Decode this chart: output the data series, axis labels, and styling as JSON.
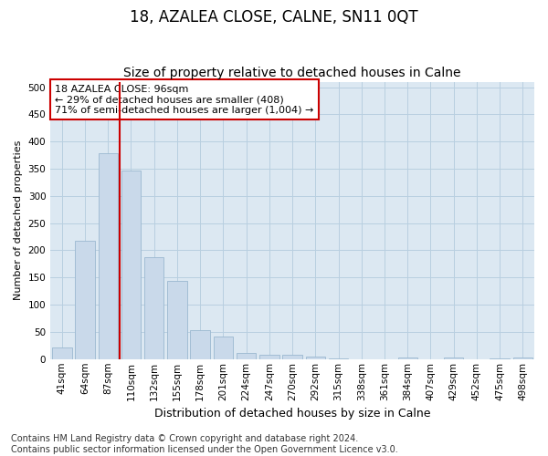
{
  "title": "18, AZALEA CLOSE, CALNE, SN11 0QT",
  "subtitle": "Size of property relative to detached houses in Calne",
  "xlabel": "Distribution of detached houses by size in Calne",
  "ylabel": "Number of detached properties",
  "bar_labels": [
    "41sqm",
    "64sqm",
    "87sqm",
    "110sqm",
    "132sqm",
    "155sqm",
    "178sqm",
    "201sqm",
    "224sqm",
    "247sqm",
    "270sqm",
    "292sqm",
    "315sqm",
    "338sqm",
    "361sqm",
    "384sqm",
    "407sqm",
    "429sqm",
    "452sqm",
    "475sqm",
    "498sqm"
  ],
  "bar_values": [
    22,
    218,
    378,
    347,
    188,
    144,
    54,
    41,
    11,
    8,
    8,
    4,
    1,
    0,
    0,
    3,
    0,
    3,
    0,
    1,
    3
  ],
  "bar_color": "#c9d9ea",
  "bar_edgecolor": "#9bb8d0",
  "vline_x": 2.5,
  "vline_color": "#cc0000",
  "annotation_text": "18 AZALEA CLOSE: 96sqm\n← 29% of detached houses are smaller (408)\n71% of semi-detached houses are larger (1,004) →",
  "annotation_box_facecolor": "#ffffff",
  "annotation_box_edgecolor": "#cc0000",
  "ylim": [
    0,
    510
  ],
  "yticks": [
    0,
    50,
    100,
    150,
    200,
    250,
    300,
    350,
    400,
    450,
    500
  ],
  "grid_color": "#b8cfe0",
  "plot_bg_color": "#dce8f2",
  "footer_text": "Contains HM Land Registry data © Crown copyright and database right 2024.\nContains public sector information licensed under the Open Government Licence v3.0.",
  "title_fontsize": 12,
  "subtitle_fontsize": 10,
  "xlabel_fontsize": 9,
  "ylabel_fontsize": 8,
  "tick_fontsize": 7.5,
  "footer_fontsize": 7,
  "annotation_fontsize": 8
}
